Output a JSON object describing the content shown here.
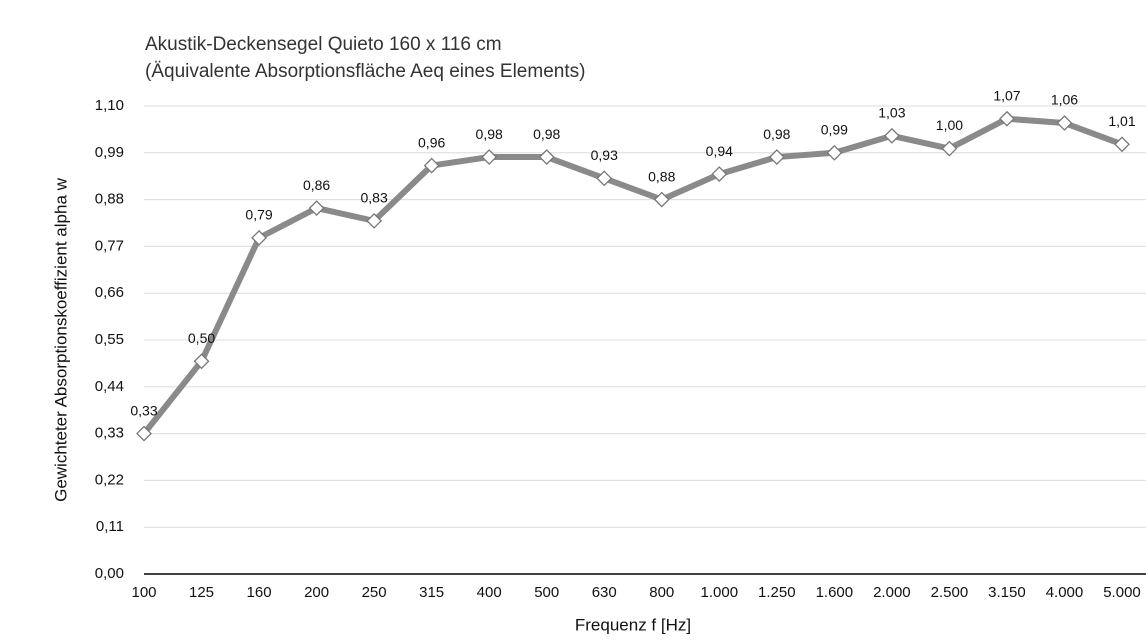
{
  "chart_data": {
    "type": "line",
    "title": "Akustik-Deckensegel Quieto 160 x 116 cm",
    "subtitle": "(Äquivalente Absorptionsfläche Aeq eines Elements)",
    "x_label": "Frequenz f [Hz]",
    "y_label": "Gewichteter Absorptionskoeffizient alpha w",
    "categories": [
      "100",
      "125",
      "160",
      "200",
      "250",
      "315",
      "400",
      "500",
      "630",
      "800",
      "1.000",
      "1.250",
      "1.600",
      "2.000",
      "2.500",
      "3.150",
      "4.000",
      "5.000"
    ],
    "values": [
      0.33,
      0.5,
      0.79,
      0.86,
      0.83,
      0.96,
      0.98,
      0.98,
      0.93,
      0.88,
      0.94,
      0.98,
      0.99,
      1.03,
      1.0,
      1.07,
      1.06,
      1.01
    ],
    "value_labels": [
      "0,33",
      "0,50",
      "0,79",
      "0,86",
      "0,83",
      "0,96",
      "0,98",
      "0,98",
      "0,93",
      "0,88",
      "0,94",
      "0,98",
      "0,99",
      "1,03",
      "1,00",
      "1,07",
      "1,06",
      "1,01"
    ],
    "color": "#8a8a8a",
    "ylim": [
      0,
      1.1
    ],
    "yticks": [
      {
        "value": 0,
        "label": "0,00"
      },
      {
        "value": 0.11,
        "label": "0,11"
      },
      {
        "value": 0.22,
        "label": "0,22"
      },
      {
        "value": 0.33,
        "label": "0,33"
      },
      {
        "value": 0.44,
        "label": "0,44"
      },
      {
        "value": 0.55,
        "label": "0,55"
      },
      {
        "value": 0.66,
        "label": "0,66"
      },
      {
        "value": 0.77,
        "label": "0,77"
      },
      {
        "value": 0.88,
        "label": "0,88"
      },
      {
        "value": 0.99,
        "label": "0,99"
      },
      {
        "value": 1.1,
        "label": "1,10"
      }
    ],
    "grid": true
  }
}
